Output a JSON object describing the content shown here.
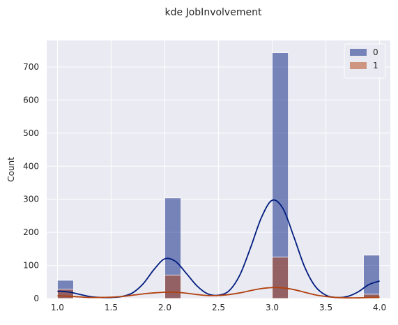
{
  "chart_data": {
    "type": "bar",
    "title": "kde JobInvolvement",
    "xlabel": "",
    "ylabel": "Count",
    "xlim": [
      0.9,
      4.1
    ],
    "ylim": [
      0,
      780
    ],
    "xticks": [
      "1.0",
      "1.5",
      "2.0",
      "2.5",
      "3.0",
      "3.5",
      "4.0"
    ],
    "yticks": [
      "0",
      "100",
      "200",
      "300",
      "400",
      "500",
      "600",
      "700"
    ],
    "grid": true,
    "legend_position": "top-right",
    "bin_edges": [
      1.0,
      1.15,
      1.3,
      1.45,
      1.6,
      1.75,
      1.9,
      2.05,
      2.2,
      2.35,
      2.5,
      2.65,
      2.8,
      2.95,
      3.1,
      3.25,
      3.4,
      3.55,
      3.7,
      3.85,
      4.0
    ],
    "series": [
      {
        "name": "0",
        "color": "#001c7f",
        "bars": [
          {
            "x0": 1.0,
            "x1": 1.15,
            "value": 55
          },
          {
            "x0": 2.0,
            "x1": 2.15,
            "value": 304
          },
          {
            "x0": 3.0,
            "x1": 3.15,
            "value": 743
          },
          {
            "x0": 3.85,
            "x1": 4.0,
            "value": 131
          }
        ],
        "kde": [
          [
            1.0,
            22
          ],
          [
            1.1,
            20
          ],
          [
            1.2,
            13
          ],
          [
            1.3,
            6
          ],
          [
            1.4,
            3
          ],
          [
            1.5,
            3
          ],
          [
            1.6,
            6
          ],
          [
            1.7,
            17
          ],
          [
            1.8,
            45
          ],
          [
            1.9,
            88
          ],
          [
            2.0,
            120
          ],
          [
            2.1,
            112
          ],
          [
            2.2,
            76
          ],
          [
            2.3,
            38
          ],
          [
            2.4,
            14
          ],
          [
            2.5,
            10
          ],
          [
            2.6,
            24
          ],
          [
            2.7,
            72
          ],
          [
            2.8,
            155
          ],
          [
            2.9,
            245
          ],
          [
            3.0,
            297
          ],
          [
            3.1,
            272
          ],
          [
            3.2,
            188
          ],
          [
            3.3,
            97
          ],
          [
            3.4,
            37
          ],
          [
            3.5,
            10
          ],
          [
            3.6,
            3
          ],
          [
            3.7,
            6
          ],
          [
            3.8,
            20
          ],
          [
            3.9,
            42
          ],
          [
            4.0,
            53
          ]
        ]
      },
      {
        "name": "1",
        "color": "#b1400d",
        "bars": [
          {
            "x0": 1.0,
            "x1": 1.15,
            "value": 28
          },
          {
            "x0": 2.0,
            "x1": 2.15,
            "value": 71
          },
          {
            "x0": 3.0,
            "x1": 3.15,
            "value": 125
          },
          {
            "x0": 3.85,
            "x1": 4.0,
            "value": 13
          }
        ],
        "kde": [
          [
            1.0,
            8
          ],
          [
            1.1,
            7
          ],
          [
            1.2,
            5
          ],
          [
            1.3,
            3
          ],
          [
            1.4,
            3
          ],
          [
            1.5,
            4
          ],
          [
            1.6,
            6
          ],
          [
            1.7,
            10
          ],
          [
            1.8,
            14
          ],
          [
            1.9,
            17
          ],
          [
            2.0,
            19
          ],
          [
            2.1,
            19
          ],
          [
            2.2,
            16
          ],
          [
            2.3,
            12
          ],
          [
            2.4,
            9
          ],
          [
            2.5,
            9
          ],
          [
            2.6,
            12
          ],
          [
            2.7,
            17
          ],
          [
            2.8,
            24
          ],
          [
            2.9,
            30
          ],
          [
            3.0,
            33
          ],
          [
            3.1,
            32
          ],
          [
            3.2,
            27
          ],
          [
            3.3,
            19
          ],
          [
            3.4,
            11
          ],
          [
            3.5,
            6
          ],
          [
            3.6,
            3
          ],
          [
            3.7,
            2
          ],
          [
            3.8,
            2
          ],
          [
            3.9,
            3
          ],
          [
            4.0,
            4
          ]
        ]
      }
    ],
    "legend": [
      {
        "label": "0",
        "color": "#001c7f"
      },
      {
        "label": "1",
        "color": "#b1400d"
      }
    ],
    "colors": {
      "plot_background": "#eaeaf2",
      "grid": "#ffffff",
      "text": "#262626"
    }
  }
}
